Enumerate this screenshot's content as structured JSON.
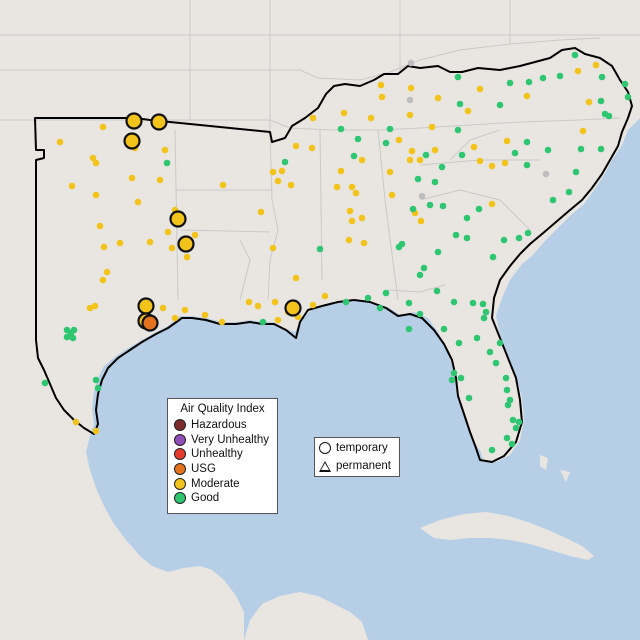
{
  "map": {
    "colors": {
      "land": "#e9e6e2",
      "water": "#b7cfe6",
      "state_line": "#c9c9c9",
      "highlight_border": "#000000"
    },
    "monitor_markers": {
      "good": "good-marker",
      "moderate": "moderate-marker",
      "usg": "usg-marker",
      "no_data": "no-data-marker"
    }
  },
  "legend": {
    "title": "Air Quality Index",
    "categories": [
      {
        "label": "Hazardous",
        "color": "#7e2b2f"
      },
      {
        "label": "Very Unhealthy",
        "color": "#8f4fb6"
      },
      {
        "label": "Unhealthy",
        "color": "#e33b2e"
      },
      {
        "label": "USG",
        "color": "#e3731f"
      },
      {
        "label": "Moderate",
        "color": "#f2c41b"
      },
      {
        "label": "Good",
        "color": "#2fc672"
      }
    ],
    "no_data_color": "#bdbdbd"
  },
  "monitor_type_legend": {
    "temporary": "temporary",
    "permanent": "permanent"
  }
}
